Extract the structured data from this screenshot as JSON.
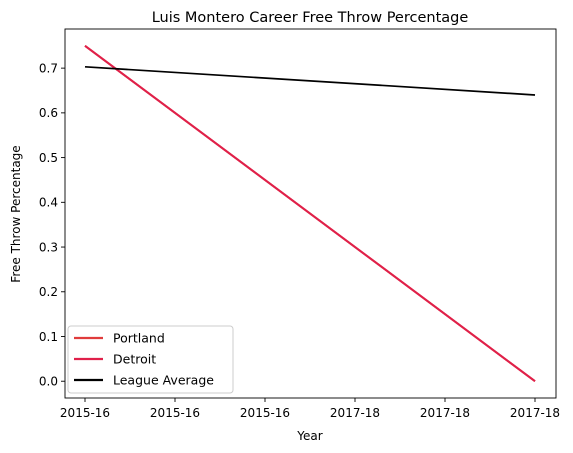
{
  "chart_data": {
    "type": "line",
    "title": "Luis Montero Career Free Throw Percentage",
    "xlabel": "Year",
    "ylabel": "Free Throw Percentage",
    "x_tick_labels": [
      "2015-16",
      "2015-16",
      "2015-16",
      "2017-18",
      "2017-18",
      "2017-18"
    ],
    "ylim": [
      -0.0375,
      0.7875
    ],
    "y_ticks": [
      0.0,
      0.1,
      0.2,
      0.3,
      0.4,
      0.5,
      0.6,
      0.7
    ],
    "y_tick_labels": [
      "0.0",
      "0.1",
      "0.2",
      "0.3",
      "0.4",
      "0.5",
      "0.6",
      "0.7"
    ],
    "grid": false,
    "legend_position": "lower-left",
    "series": [
      {
        "name": "Portland",
        "color": "#e03c3c",
        "x": [
          0,
          5
        ],
        "values": [
          0.75,
          0.0
        ]
      },
      {
        "name": "Detroit",
        "color": "#e0204a",
        "x": [
          0,
          5
        ],
        "values": [
          0.75,
          0.0
        ]
      },
      {
        "name": "League Average",
        "color": "#000000",
        "x": [
          0,
          5
        ],
        "values": [
          0.703,
          0.64
        ]
      }
    ]
  }
}
